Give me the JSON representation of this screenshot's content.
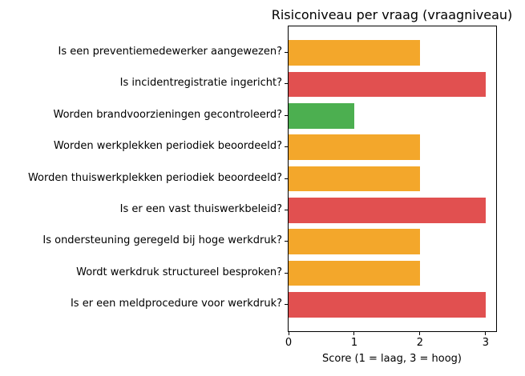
{
  "chart_data": {
    "type": "bar",
    "orientation": "horizontal",
    "title": "Risiconiveau per vraag (vraagniveau)",
    "xlabel": "Score (1 = laag, 3 = hoog)",
    "ylabel": "",
    "categories": [
      "Is een preventiemedewerker aangewezen?",
      "Is incidentregistratie ingericht?",
      "Worden brandvoorzieningen gecontroleerd?",
      "Worden werkplekken periodiek beoordeeld?",
      "Worden thuiswerkplekken periodiek beoordeeld?",
      "Is er een vast thuiswerkbeleid?",
      "Is ondersteuning geregeld bij hoge werkdruk?",
      "Wordt werkdruk structureel besproken?",
      "Is er een meldprocedure voor werkdruk?"
    ],
    "values": [
      2,
      3,
      1,
      2,
      2,
      3,
      2,
      2,
      3
    ],
    "score_colors": {
      "1": "#4CAF50",
      "2": "#F3A72B",
      "3": "#E15050"
    },
    "bar_colors": [
      "#F3A72B",
      "#E15050",
      "#4CAF50",
      "#F3A72B",
      "#F3A72B",
      "#E15050",
      "#F3A72B",
      "#F3A72B",
      "#E15050"
    ],
    "xticks": [
      "0",
      "1",
      "2",
      "3"
    ],
    "xlim": [
      0,
      3.16
    ],
    "grid": false,
    "legend": null,
    "background_color": "#FFFFFF",
    "axis_color": "#000000"
  }
}
